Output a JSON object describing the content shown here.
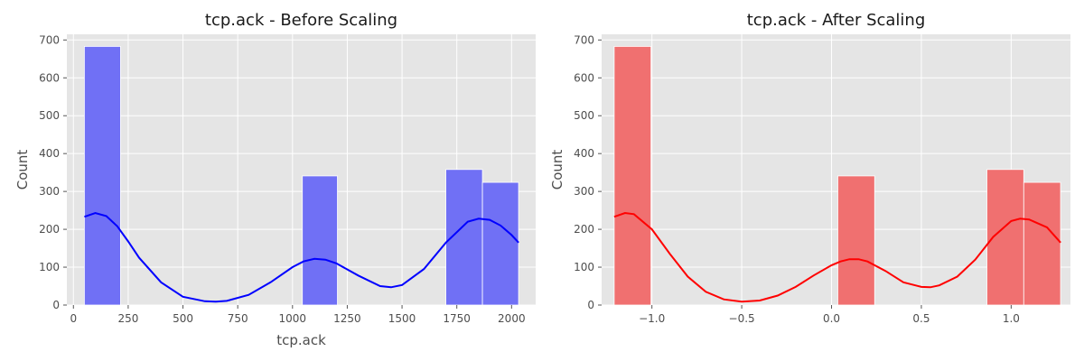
{
  "chart_data": [
    {
      "type": "bar",
      "title": "tcp.ack - Before Scaling",
      "xlabel": "tcp.ack",
      "ylabel": "Count",
      "xlim": [
        -30,
        2110
      ],
      "ylim": [
        0,
        715
      ],
      "grid": true,
      "bar_color": "#7070f5",
      "kde_color": "#0000ff",
      "x_ticks": [
        0,
        250,
        500,
        750,
        1000,
        1250,
        1500,
        1750,
        2000
      ],
      "x_tick_labels": [
        "0",
        "250",
        "500",
        "750",
        "1000",
        "1250",
        "1500",
        "1750",
        "2000"
      ],
      "y_ticks": [
        0,
        100,
        200,
        300,
        400,
        500,
        600,
        700
      ],
      "y_tick_labels": [
        "0",
        "100",
        "200",
        "300",
        "400",
        "500",
        "600",
        "700"
      ],
      "bins": [
        {
          "x0": 50,
          "x1": 215,
          "count": 683
        },
        {
          "x0": 1045,
          "x1": 1205,
          "count": 341
        },
        {
          "x0": 1700,
          "x1": 1867,
          "count": 358
        },
        {
          "x0": 1867,
          "x1": 2032,
          "count": 324
        }
      ],
      "kde": {
        "x": [
          50,
          100,
          150,
          200,
          250,
          300,
          400,
          500,
          600,
          650,
          700,
          800,
          900,
          1000,
          1050,
          1100,
          1150,
          1200,
          1300,
          1400,
          1450,
          1500,
          1600,
          1700,
          1800,
          1850,
          1900,
          1950,
          2000,
          2032
        ],
        "y": [
          233,
          243,
          235,
          208,
          168,
          125,
          60,
          22,
          10,
          9,
          11,
          27,
          60,
          100,
          115,
          122,
          120,
          110,
          78,
          50,
          47,
          53,
          95,
          165,
          220,
          228,
          225,
          210,
          185,
          165
        ]
      }
    },
    {
      "type": "bar",
      "title": "tcp.ack - After Scaling",
      "xlabel": "",
      "ylabel": "Count",
      "xlim": [
        -1.28,
        1.33
      ],
      "ylim": [
        0,
        715
      ],
      "grid": true,
      "bar_color": "#f07070",
      "kde_color": "#ff0000",
      "x_ticks": [
        -1.0,
        -0.5,
        0.0,
        0.5,
        1.0
      ],
      "x_tick_labels": [
        "−1.0",
        "−0.5",
        "0.0",
        "0.5",
        "1.0"
      ],
      "y_ticks": [
        0,
        100,
        200,
        300,
        400,
        500,
        600,
        700
      ],
      "y_tick_labels": [
        "0",
        "100",
        "200",
        "300",
        "400",
        "500",
        "600",
        "700"
      ],
      "bins": [
        {
          "x0": -1.21,
          "x1": -1.005,
          "count": 683
        },
        {
          "x0": 0.035,
          "x1": 0.24,
          "count": 341
        },
        {
          "x0": 0.865,
          "x1": 1.07,
          "count": 358
        },
        {
          "x0": 1.07,
          "x1": 1.275,
          "count": 324
        }
      ],
      "kde": {
        "x": [
          -1.21,
          -1.15,
          -1.1,
          -1.0,
          -0.9,
          -0.8,
          -0.7,
          -0.6,
          -0.5,
          -0.4,
          -0.3,
          -0.2,
          -0.1,
          0.0,
          0.05,
          0.1,
          0.15,
          0.2,
          0.3,
          0.4,
          0.5,
          0.55,
          0.6,
          0.7,
          0.8,
          0.9,
          1.0,
          1.05,
          1.1,
          1.2,
          1.275
        ],
        "y": [
          233,
          243,
          240,
          200,
          135,
          75,
          35,
          15,
          9,
          12,
          25,
          48,
          78,
          105,
          115,
          121,
          121,
          115,
          90,
          60,
          48,
          47,
          52,
          75,
          120,
          180,
          222,
          228,
          226,
          205,
          165
        ]
      }
    }
  ]
}
